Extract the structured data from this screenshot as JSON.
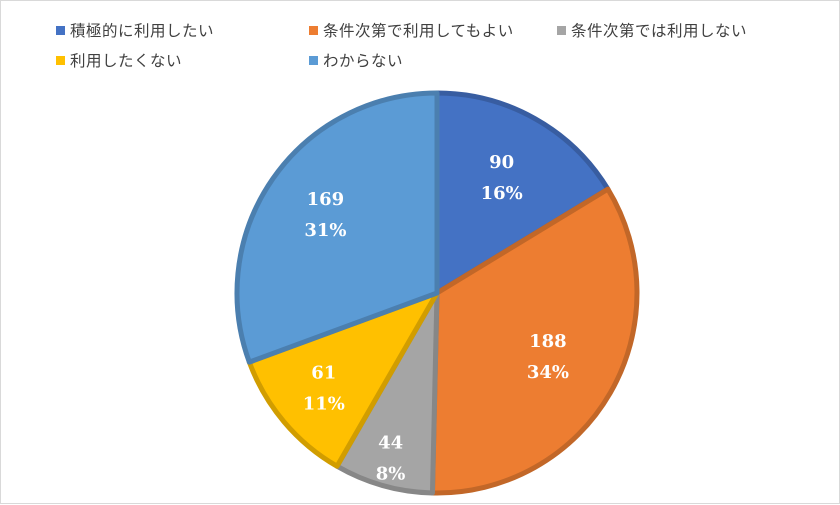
{
  "chart_data": {
    "type": "pie",
    "categories": [
      "積極的に利用したい",
      "条件次第で利用してもよい",
      "条件次第では利用しない",
      "利用したくない",
      "わからない"
    ],
    "values": [
      90,
      188,
      44,
      61,
      169
    ],
    "percent_labels": [
      "16%",
      "34%",
      "8%",
      "11%",
      "31%"
    ],
    "colors": [
      "#4472C4",
      "#ED7D31",
      "#A5A5A5",
      "#FFC000",
      "#5B9BD5"
    ],
    "start_angle_deg": 0,
    "direction": "clockwise",
    "legend_position": "top",
    "data_labels": "value and percent"
  }
}
